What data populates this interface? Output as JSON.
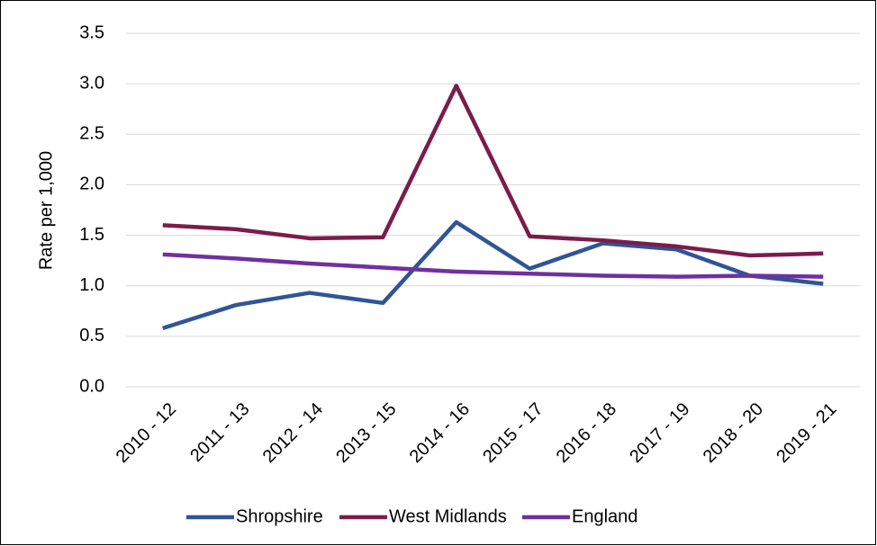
{
  "chart_data": {
    "type": "line",
    "y_label": "Rate per 1,000",
    "categories": [
      "2010 - 12",
      "2011 - 13",
      "2012 - 14",
      "2013 - 15",
      "2014 - 16",
      "2015 - 17",
      "2016 - 18",
      "2017 - 19",
      "2018 - 20",
      "2019 - 21"
    ],
    "series": [
      {
        "name": "Shropshire",
        "color": "#2f5597",
        "values": [
          0.58,
          0.81,
          0.93,
          0.83,
          1.63,
          1.17,
          1.42,
          1.36,
          1.1,
          1.02
        ]
      },
      {
        "name": "West Midlands",
        "color": "#7b1c4b",
        "values": [
          1.6,
          1.56,
          1.47,
          1.48,
          2.98,
          1.49,
          1.45,
          1.39,
          1.3,
          1.32
        ]
      },
      {
        "name": "England",
        "color": "#7030a0",
        "values": [
          1.31,
          1.27,
          1.22,
          1.18,
          1.14,
          1.12,
          1.1,
          1.09,
          1.1,
          1.09
        ]
      }
    ],
    "ylim": [
      0,
      3.5
    ],
    "yticks": [
      {
        "value": 0,
        "label": "0.0"
      },
      0.5,
      {
        "value": 1,
        "label": "1.0"
      },
      1.5,
      {
        "value": 2,
        "label": "2.0"
      },
      2.5,
      {
        "value": 3,
        "label": "3.0"
      },
      3.5
    ],
    "grid": true,
    "legend": "bottom"
  }
}
